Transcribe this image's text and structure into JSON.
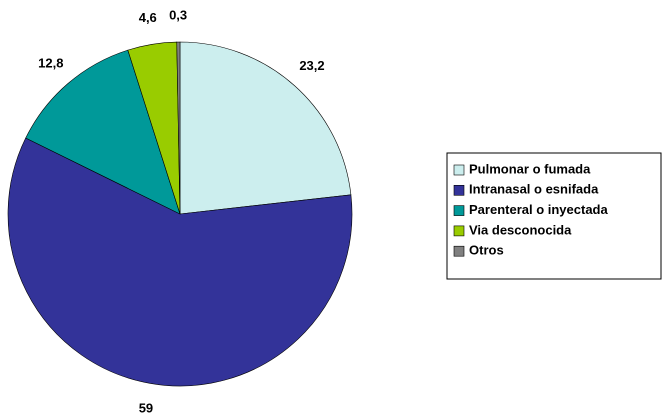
{
  "chart_data": {
    "type": "pie",
    "categories": [
      "Pulmonar o fumada",
      "Intranasal o esnifada",
      "Parenteral o inyectada",
      "Via desconocida",
      "Otros"
    ],
    "values": [
      23.2,
      59,
      12.8,
      4.6,
      0.3
    ],
    "value_labels": [
      "23,2",
      "59",
      "12,8",
      "4,6",
      "0,3"
    ],
    "colors": [
      "#cceeee",
      "#333399",
      "#009999",
      "#99cc00",
      "#808080"
    ],
    "legend": "right"
  }
}
